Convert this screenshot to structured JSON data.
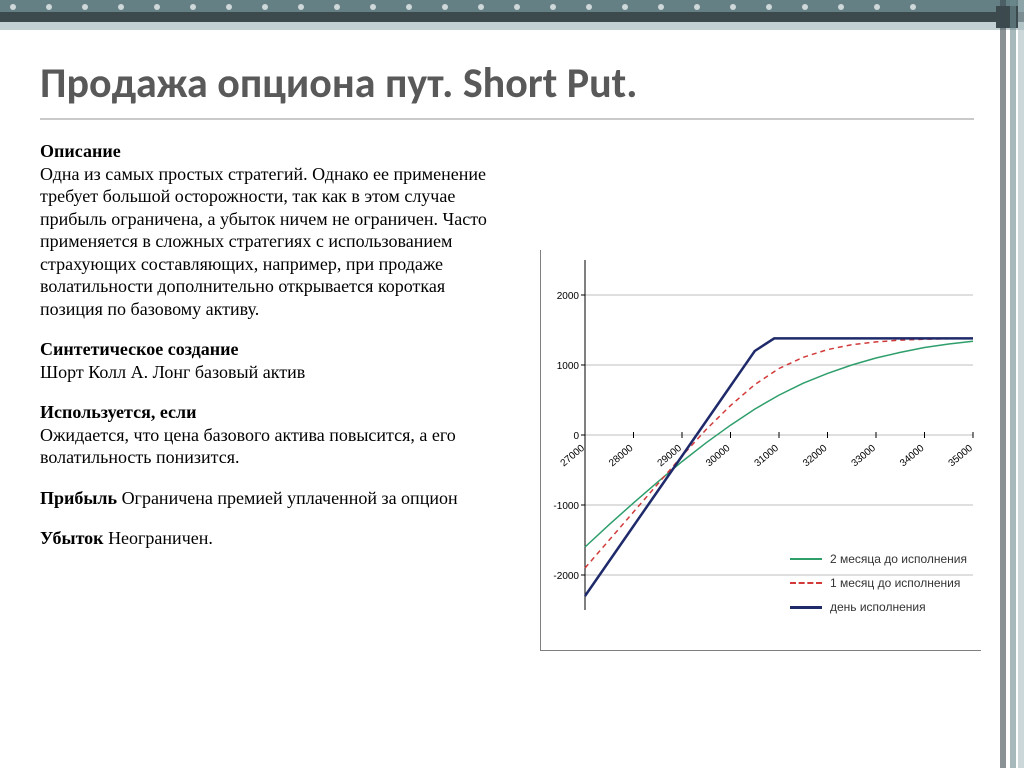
{
  "title": "Продажа опциона пут. Short Put.",
  "sections": {
    "desc_h": "Описание",
    "desc": "Одна из самых простых стратегий. Однако ее применение требует большой осторожности, так как в этом случае прибыль ограничена, а убыток ничем не ограничен. Часто применяется в сложных стратегиях с использованием страхующих составляющих, например, при продаже волатильности дополнительно открывается короткая позиция по базовому активу.",
    "synth_h": "Синтетическое создание",
    "synth": "Шорт Колл А. Лонг базовый актив",
    "use_h": "Используется, если",
    "use": "Ожидается, что цена базового актива повысится, а его волатильность понизится.",
    "profit_h": "Прибыль",
    "profit": " Ограничена премией уплаченной за опцион",
    "loss_h": "Убыток",
    "loss": "  Неограничен."
  },
  "chart": {
    "type": "line",
    "xmin": 27000,
    "xmax": 35000,
    "xtick_step": 1000,
    "ymin": -2500,
    "ymax": 2500,
    "ytick_step": 1000,
    "ylabels": [
      -2000,
      -1000,
      0,
      1000,
      2000
    ],
    "xlabels": [
      27000,
      28000,
      29000,
      30000,
      31000,
      32000,
      33000,
      34000,
      35000
    ],
    "grid_color": "#808080",
    "axis_color": "#000000",
    "label_fontsize": 10,
    "label_font": "Arial",
    "legend": [
      {
        "label": "2 месяца до исполнения",
        "color": "#2e9e6b",
        "dash": "none",
        "width": 1.5
      },
      {
        "label": "1 месяц до исполнения",
        "color": "#d23a3a",
        "dash": "5,4",
        "width": 1.5
      },
      {
        "label": "день исполнения",
        "color": "#1f2a6b",
        "dash": "none",
        "width": 2.5
      }
    ],
    "series": {
      "expiry": {
        "color": "#1f2a6b",
        "dash": "none",
        "width": 2.5,
        "points": [
          [
            27000,
            -2300
          ],
          [
            27500,
            -1800
          ],
          [
            28000,
            -1300
          ],
          [
            28500,
            -800
          ],
          [
            29000,
            -300
          ],
          [
            29500,
            200
          ],
          [
            30000,
            700
          ],
          [
            30500,
            1200
          ],
          [
            30900,
            1380
          ],
          [
            31000,
            1380
          ],
          [
            32000,
            1380
          ],
          [
            33000,
            1380
          ],
          [
            34000,
            1380
          ],
          [
            35000,
            1380
          ]
        ]
      },
      "one_month": {
        "color": "#d23a3a",
        "dash": "5,4",
        "width": 1.5,
        "points": [
          [
            27000,
            -1900
          ],
          [
            27500,
            -1500
          ],
          [
            28000,
            -1100
          ],
          [
            28500,
            -700
          ],
          [
            29000,
            -300
          ],
          [
            29500,
            80
          ],
          [
            30000,
            420
          ],
          [
            30500,
            720
          ],
          [
            31000,
            950
          ],
          [
            31500,
            1110
          ],
          [
            32000,
            1220
          ],
          [
            32500,
            1290
          ],
          [
            33000,
            1330
          ],
          [
            33500,
            1355
          ],
          [
            34000,
            1368
          ],
          [
            34500,
            1375
          ],
          [
            35000,
            1378
          ]
        ]
      },
      "two_month": {
        "color": "#2e9e6b",
        "dash": "none",
        "width": 1.5,
        "points": [
          [
            27000,
            -1600
          ],
          [
            27500,
            -1280
          ],
          [
            28000,
            -970
          ],
          [
            28500,
            -670
          ],
          [
            29000,
            -380
          ],
          [
            29500,
            -110
          ],
          [
            30000,
            140
          ],
          [
            30500,
            370
          ],
          [
            31000,
            570
          ],
          [
            31500,
            740
          ],
          [
            32000,
            880
          ],
          [
            32500,
            1000
          ],
          [
            33000,
            1100
          ],
          [
            33500,
            1180
          ],
          [
            34000,
            1250
          ],
          [
            34500,
            1300
          ],
          [
            35000,
            1340
          ]
        ]
      }
    }
  },
  "colors": {
    "title": "#595959",
    "rule": "#c9c9c9",
    "deco_dark": "#3c4a4e",
    "deco_mid": "#6c8a8e",
    "deco_light": "#a9bcc0"
  }
}
